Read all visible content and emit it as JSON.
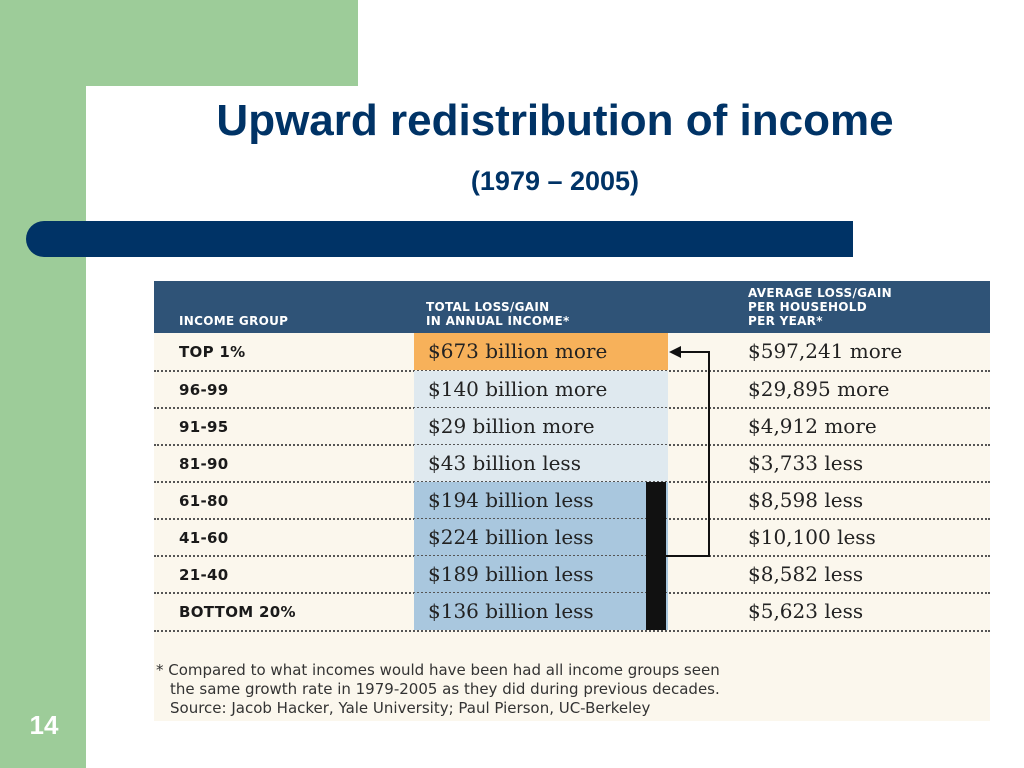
{
  "slide": {
    "title": "Upward redistribution of income",
    "subtitle": "(1979 – 2005)",
    "number": "14"
  },
  "table": {
    "headers": {
      "group": "INCOME GROUP",
      "total_line1": "TOTAL LOSS/GAIN",
      "total_line2": "IN ANNUAL INCOME*",
      "avg_line1": "AVERAGE LOSS/GAIN",
      "avg_line2": "PER HOUSEHOLD",
      "avg_line3": "PER YEAR*"
    },
    "rows": [
      {
        "group": "TOP 1%",
        "total": "$673 billion more",
        "avg": "$597,241 more"
      },
      {
        "group": "96-99",
        "total": "$140 billion more",
        "avg": "$29,895 more"
      },
      {
        "group": "91-95",
        "total": "$29 billion more",
        "avg": "$4,912 more"
      },
      {
        "group": "81-90",
        "total": "$43 billion less",
        "avg": "$3,733 less"
      },
      {
        "group": "61-80",
        "total": "$194 billion less",
        "avg": "$8,598 less"
      },
      {
        "group": "41-60",
        "total": "$224 billion less",
        "avg": "$10,100 less"
      },
      {
        "group": "21-40",
        "total": "$189 billion less",
        "avg": "$8,582 less"
      },
      {
        "group": "BOTTOM 20%",
        "total": "$136 billion less",
        "avg": "$5,623 less"
      }
    ],
    "footnote": {
      "line1": "* Compared to what incomes would have been had all income groups seen",
      "line2": "the same growth rate in 1979-2005 as they did during previous decades.",
      "line3": "Source: Jacob Hacker, Yale University; Paul Pierson, UC-Berkeley"
    }
  },
  "colors": {
    "title": "#003366",
    "header_bg": "#2f5377",
    "top_highlight": "#f7b15a",
    "gain_bg": "#dfe9ef",
    "loss_bg": "#a9c7de",
    "frame_green": "#9dcc99"
  }
}
